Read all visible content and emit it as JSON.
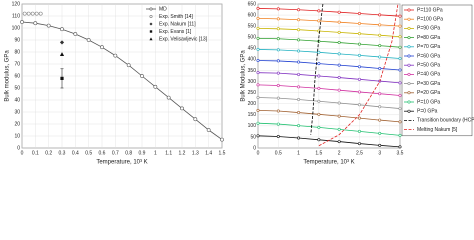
{
  "chart_data": [
    {
      "type": "line",
      "x_label": "Temperature, 10³ K",
      "y_label": "Bulk modulus, GPa",
      "xlim": [
        0,
        1.5
      ],
      "xticks": [
        0,
        0.1,
        0.2,
        0.3,
        0.4,
        0.5,
        0.6,
        0.7,
        0.8,
        0.9,
        1,
        1.1,
        1.2,
        1.3,
        1.4,
        1.5
      ],
      "ylim": [
        0,
        120
      ],
      "yticks": [
        0,
        10,
        20,
        30,
        40,
        50,
        60,
        70,
        80,
        90,
        100,
        110,
        120
      ],
      "grid": true,
      "legend": "top-right",
      "series": [
        {
          "name": "MD",
          "color": "#555555",
          "marker": "circle-open",
          "line": true,
          "x": [
            0,
            0.1,
            0.2,
            0.3,
            0.4,
            0.5,
            0.6,
            0.7,
            0.8,
            0.9,
            1,
            1.1,
            1.2,
            1.3,
            1.4,
            1.5
          ],
          "values": [
            105,
            104,
            102,
            99,
            95,
            90,
            84,
            77,
            69,
            60,
            51,
            42,
            33,
            24,
            15,
            7
          ]
        },
        {
          "name": "Exp. Smith [14]",
          "color": "#777777",
          "marker": "circle-open",
          "line": false,
          "x": [
            0.02,
            0.05,
            0.08,
            0.11,
            0.14
          ],
          "values": [
            112,
            112,
            112,
            112,
            112
          ]
        },
        {
          "name": "Exp. Nakum [11]",
          "color": "#333333",
          "marker": "diamond",
          "line": false,
          "x": [
            0.3
          ],
          "values": [
            88
          ]
        },
        {
          "name": "Exp. Evans [1]",
          "color": "#111111",
          "marker": "square",
          "line": false,
          "x": [
            0.3
          ],
          "values": [
            58
          ],
          "errors": [
            8
          ]
        },
        {
          "name": "Exp. Velisavljevic [13]",
          "color": "#111111",
          "marker": "triangle",
          "line": false,
          "x": [
            0.3
          ],
          "values": [
            78
          ]
        }
      ]
    },
    {
      "type": "line",
      "x_label": "Temperature, 10³ K",
      "y_label": "Bulk Modulus, GPa",
      "xlim": [
        0,
        3.5
      ],
      "xticks": [
        0,
        0.5,
        1,
        1.5,
        2,
        2.5,
        3,
        3.5
      ],
      "ylim": [
        0,
        650
      ],
      "yticks": [
        0,
        50,
        100,
        150,
        200,
        250,
        300,
        350,
        400,
        450,
        500,
        550,
        600,
        650
      ],
      "grid": true,
      "legend": "right",
      "series": [
        {
          "name": "P=110 GPa",
          "color": "#e02020",
          "marker": "circle-open",
          "line": true,
          "x": [
            0,
            0.5,
            1,
            1.5,
            2,
            2.5,
            3,
            3.5
          ],
          "values": [
            630,
            628,
            624,
            619,
            613,
            607,
            601,
            595
          ]
        },
        {
          "name": "P=100 GPa",
          "color": "#f08020",
          "marker": "circle-open",
          "line": true,
          "x": [
            0,
            0.5,
            1,
            1.5,
            2,
            2.5,
            3,
            3.5
          ],
          "values": [
            585,
            583,
            579,
            574,
            568,
            562,
            556,
            550
          ]
        },
        {
          "name": "P=90 GPa",
          "color": "#c8b400",
          "marker": "circle-open",
          "line": true,
          "x": [
            0,
            0.5,
            1,
            1.5,
            2,
            2.5,
            3,
            3.5
          ],
          "values": [
            540,
            538,
            534,
            528,
            522,
            516,
            509,
            502
          ]
        },
        {
          "name": "P=80 GPa",
          "color": "#30a030",
          "marker": "circle-open",
          "line": true,
          "x": [
            0,
            0.5,
            1,
            1.5,
            2,
            2.5,
            3,
            3.5
          ],
          "values": [
            495,
            493,
            488,
            482,
            476,
            469,
            462,
            455
          ]
        },
        {
          "name": "P=70 GPa",
          "color": "#20b0c0",
          "marker": "circle-open",
          "line": true,
          "x": [
            0,
            0.5,
            1,
            1.5,
            2,
            2.5,
            3,
            3.5
          ],
          "values": [
            445,
            443,
            438,
            432,
            425,
            418,
            411,
            404
          ]
        },
        {
          "name": "P=60 GPa",
          "color": "#2040d0",
          "marker": "circle-open",
          "line": true,
          "x": [
            0,
            0.5,
            1,
            1.5,
            2,
            2.5,
            3,
            3.5
          ],
          "values": [
            395,
            393,
            388,
            381,
            374,
            367,
            359,
            352
          ]
        },
        {
          "name": "P=50 GPa",
          "color": "#8030c0",
          "marker": "circle-open",
          "line": true,
          "x": [
            0,
            0.5,
            1,
            1.5,
            2,
            2.5,
            3,
            3.5
          ],
          "values": [
            340,
            338,
            332,
            325,
            318,
            310,
            302,
            294
          ]
        },
        {
          "name": "P=40 GPa",
          "color": "#d030a0",
          "marker": "circle-open",
          "line": true,
          "x": [
            0,
            0.5,
            1,
            1.5,
            2,
            2.5,
            3,
            3.5
          ],
          "values": [
            285,
            282,
            276,
            269,
            261,
            253,
            245,
            237
          ]
        },
        {
          "name": "P=30 GPa",
          "color": "#909090",
          "marker": "circle-open",
          "line": true,
          "x": [
            0,
            0.5,
            1,
            1.5,
            2,
            2.5,
            3,
            3.5
          ],
          "values": [
            228,
            225,
            219,
            211,
            203,
            195,
            186,
            178
          ]
        },
        {
          "name": "P=20 GPa",
          "color": "#a06030",
          "marker": "circle-open",
          "line": true,
          "x": [
            0,
            0.5,
            1,
            1.5,
            2,
            2.5,
            3,
            3.5
          ],
          "values": [
            170,
            167,
            160,
            152,
            144,
            135,
            126,
            118
          ]
        },
        {
          "name": "P=10 GPa",
          "color": "#20c070",
          "marker": "circle-open",
          "line": true,
          "x": [
            0,
            0.5,
            1,
            1.5,
            2,
            2.5,
            3,
            3.5
          ],
          "values": [
            112,
            108,
            101,
            93,
            84,
            75,
            66,
            57
          ]
        },
        {
          "name": "P=0 GPa",
          "color": "#111111",
          "marker": "circle-open",
          "line": true,
          "x": [
            0,
            0.5,
            1,
            1.5,
            2,
            2.5,
            3,
            3.5
          ],
          "values": [
            55,
            52,
            45,
            37,
            29,
            20,
            12,
            5
          ]
        },
        {
          "name": "Transition boundary (HCP-BCC)",
          "color": "#000000",
          "marker": "none",
          "line": true,
          "dashed": true,
          "x": [
            1.6,
            1.5,
            1.4,
            1.35,
            1.3
          ],
          "values": [
            650,
            500,
            300,
            150,
            60
          ]
        },
        {
          "name": "Melting Nakum [5]",
          "color": "#e02020",
          "marker": "none",
          "line": true,
          "dashed": true,
          "x": [
            1.5,
            2,
            2.5,
            3,
            3.3,
            3.45
          ],
          "values": [
            10,
            60,
            150,
            300,
            480,
            650
          ]
        }
      ]
    }
  ]
}
